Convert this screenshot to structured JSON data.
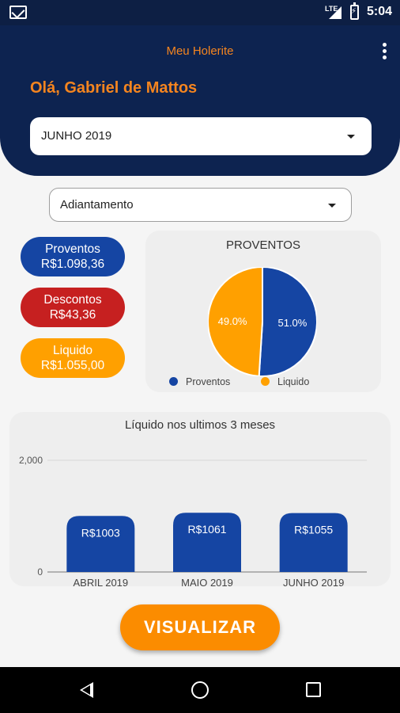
{
  "status_bar": {
    "time": "5:04",
    "network": "LTE"
  },
  "header": {
    "app_title": "Meu Holerite",
    "greeting": "Olá, Gabriel de Mattos",
    "month_select": {
      "value": "JUNHO 2019"
    }
  },
  "type_select": {
    "value": "Adiantamento"
  },
  "summary": {
    "proventos": {
      "label": "Proventos",
      "value": "R$1.098,36",
      "color": "#1545a3"
    },
    "descontos": {
      "label": "Descontos",
      "value": "R$43,36",
      "color": "#c62020"
    },
    "liquido": {
      "label": "Liquido",
      "value": "R$1.055,00",
      "color": "#ffa000"
    }
  },
  "pie_card": {
    "title": "PROVENTOS"
  },
  "bar_card": {
    "title": "Líquido nos ultimos 3 meses"
  },
  "chart_data": [
    {
      "type": "pie",
      "title": "PROVENTOS",
      "labels": [
        "Proventos",
        "Liquido"
      ],
      "values": [
        51.0,
        49.0
      ],
      "display_labels": [
        "51.0%",
        "49.0%"
      ],
      "colors": [
        "#1545a3",
        "#ffa000"
      ],
      "legend": "bottom"
    },
    {
      "type": "bar",
      "title": "Líquido nos ultimos 3 meses",
      "categories": [
        "ABRIL 2019",
        "MAIO 2019",
        "JUNHO 2019"
      ],
      "values": [
        1003,
        1061,
        1055
      ],
      "data_labels": [
        "R$1003",
        "R$1061",
        "R$1055"
      ],
      "ylim": [
        0,
        2000
      ],
      "y_ticks": [
        "0",
        "2,000"
      ],
      "color": "#1545a3",
      "grid": true
    }
  ],
  "actions": {
    "visualizar_label": "VISUALIZAR"
  }
}
